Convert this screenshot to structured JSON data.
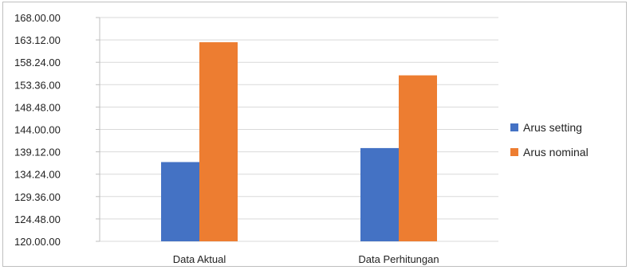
{
  "chart_data": {
    "type": "bar",
    "categories": [
      "Data Aktual",
      "Data Perhitungan"
    ],
    "series": [
      {
        "name": "Arus setting",
        "values": [
          137.0,
          140.0
        ],
        "color": "#4472c4"
      },
      {
        "name": "Arus nominal",
        "values": [
          162.7,
          155.6
        ],
        "color": "#ed7d31"
      }
    ],
    "yticks": [
      "120.00.00",
      "124.48.00",
      "129.36.00",
      "134.24.00",
      "139.12.00",
      "144.00.00",
      "148.48.00",
      "153.36.00",
      "158.24.00",
      "163.12.00",
      "168.00.00"
    ],
    "ylim": [
      120,
      168
    ],
    "grid": true,
    "legend_position": "right"
  }
}
